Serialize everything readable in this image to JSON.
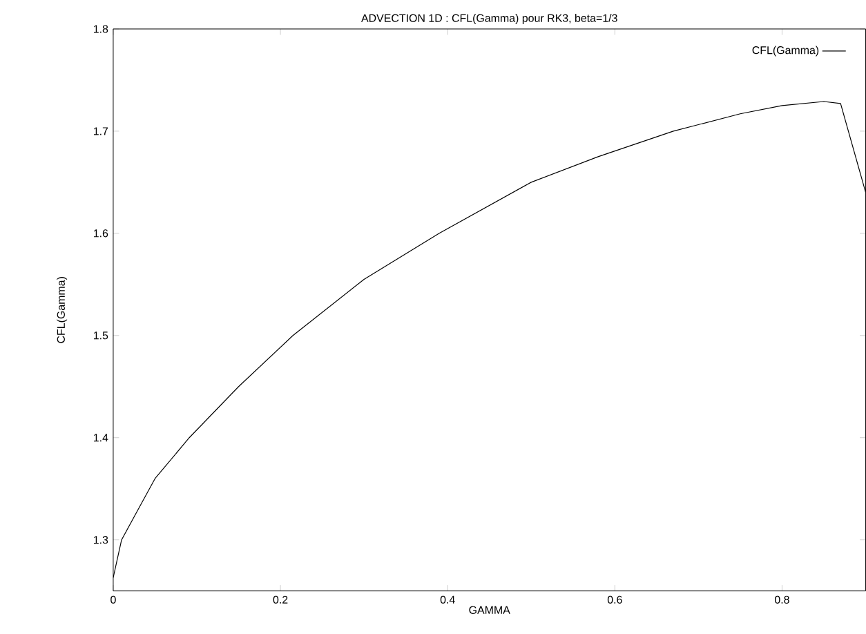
{
  "chart_data": {
    "type": "line",
    "title": "ADVECTION 1D : CFL(Gamma) pour RK3, beta=1/3",
    "xlabel": "GAMMA",
    "ylabel": "CFL(Gamma)",
    "x": [
      0,
      0.01,
      0.03,
      0.05,
      0.091,
      0.15,
      0.215,
      0.3,
      0.39,
      0.5,
      0.58,
      0.67,
      0.75,
      0.8,
      0.85,
      0.87,
      0.9
    ],
    "series": [
      {
        "name": "CFL(Gamma)",
        "color": "#000000",
        "values": [
          1.263,
          1.3,
          1.33,
          1.36,
          1.4,
          1.45,
          1.5,
          1.555,
          1.6,
          1.65,
          1.675,
          1.7,
          1.717,
          1.725,
          1.729,
          1.727,
          1.64
        ]
      }
    ],
    "xlim": [
      0,
      0.9
    ],
    "ylim": [
      1.25,
      1.8
    ],
    "xticks": [
      0,
      0.2,
      0.4,
      0.6,
      0.8
    ],
    "yticks": [
      1.3,
      1.4,
      1.5,
      1.6,
      1.7,
      1.8
    ],
    "legend": "top right",
    "grid": false,
    "marker": "none",
    "line_style": "solid"
  }
}
